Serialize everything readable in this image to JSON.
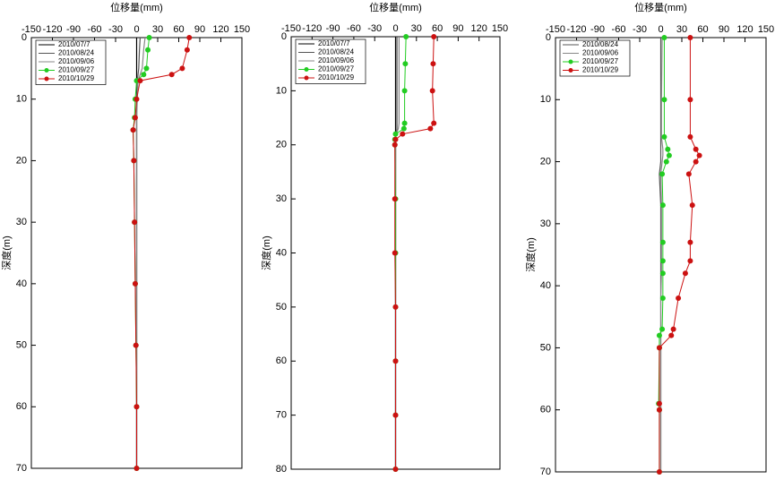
{
  "chart_data": [
    {
      "type": "line",
      "title": "位移量(mm)",
      "y_label": "深度(m)",
      "xlim": [
        -150,
        150
      ],
      "xticks": [
        -150,
        -120,
        -90,
        -60,
        -30,
        0,
        30,
        60,
        90,
        120,
        150
      ],
      "ylim": [
        0,
        70
      ],
      "yticks": [
        0,
        10,
        20,
        30,
        40,
        50,
        60,
        70
      ],
      "y_inverted": true,
      "depths": [
        0,
        2,
        5,
        6,
        7,
        10,
        13,
        15,
        20,
        30,
        40,
        50,
        60,
        70
      ],
      "series": [
        {
          "name": "2010/07/7",
          "color": "#000000",
          "marker": false,
          "values": [
            0,
            0,
            0,
            0,
            0,
            0,
            0,
            0,
            0,
            0,
            0,
            0,
            0,
            0
          ]
        },
        {
          "name": "2010/08/24",
          "color": "#555555",
          "marker": false,
          "values": [
            5,
            4,
            3,
            2,
            1,
            0,
            0,
            0,
            0,
            0,
            0,
            0,
            0,
            0
          ]
        },
        {
          "name": "2010/09/06",
          "color": "#888888",
          "marker": false,
          "values": [
            12,
            10,
            8,
            5,
            2,
            1,
            0,
            0,
            0,
            0,
            0,
            0,
            0,
            0
          ]
        },
        {
          "name": "2010/09/27",
          "color": "#22cc22",
          "marker": true,
          "values": [
            18,
            16,
            14,
            10,
            0,
            -2,
            -3,
            -5,
            -4,
            -3,
            -2,
            -1,
            0,
            0
          ]
        },
        {
          "name": "2010/10/29",
          "color": "#cc1111",
          "marker": true,
          "values": [
            75,
            72,
            65,
            50,
            5,
            0,
            -2,
            -5,
            -4,
            -3,
            -2,
            -1,
            0,
            0
          ]
        }
      ]
    },
    {
      "type": "line",
      "title": "位移量(mm)",
      "y_label": "深度(m)",
      "xlim": [
        -150,
        150
      ],
      "xticks": [
        -150,
        -120,
        -90,
        -60,
        -30,
        0,
        30,
        60,
        90,
        120,
        150
      ],
      "ylim": [
        0,
        80
      ],
      "yticks": [
        0,
        10,
        20,
        30,
        40,
        50,
        60,
        70,
        80
      ],
      "y_inverted": true,
      "depths": [
        0,
        5,
        10,
        16,
        17,
        18,
        19,
        20,
        30,
        40,
        50,
        60,
        70,
        80
      ],
      "series": [
        {
          "name": "2010/07/7",
          "color": "#000000",
          "marker": false,
          "values": [
            0,
            0,
            0,
            0,
            0,
            0,
            0,
            0,
            0,
            0,
            0,
            0,
            0,
            0
          ]
        },
        {
          "name": "2010/08/24",
          "color": "#555555",
          "marker": false,
          "values": [
            2,
            2,
            2,
            2,
            2,
            1,
            0,
            0,
            0,
            0,
            0,
            0,
            0,
            0
          ]
        },
        {
          "name": "2010/09/06",
          "color": "#888888",
          "marker": false,
          "values": [
            5,
            5,
            5,
            5,
            4,
            1,
            0,
            0,
            0,
            0,
            0,
            0,
            0,
            0
          ]
        },
        {
          "name": "2010/09/27",
          "color": "#22cc22",
          "marker": true,
          "values": [
            15,
            14,
            13,
            13,
            12,
            0,
            -1,
            -1,
            0,
            0,
            0,
            0,
            0,
            0
          ]
        },
        {
          "name": "2010/10/29",
          "color": "#cc1111",
          "marker": true,
          "values": [
            55,
            54,
            53,
            55,
            50,
            10,
            0,
            -1,
            -1,
            -1,
            0,
            0,
            0,
            0
          ]
        }
      ]
    },
    {
      "type": "line",
      "title": "位移量(mm)",
      "y_label": "深度(m)",
      "xlim": [
        -150,
        150
      ],
      "xticks": [
        -150,
        -120,
        -90,
        -60,
        -30,
        0,
        30,
        60,
        90,
        120,
        150
      ],
      "ylim": [
        0,
        70
      ],
      "yticks": [
        0,
        10,
        20,
        30,
        40,
        50,
        60,
        70
      ],
      "y_inverted": true,
      "depths": [
        0,
        10,
        16,
        18,
        19,
        20,
        22,
        27,
        33,
        36,
        38,
        42,
        47,
        48,
        50,
        59,
        60,
        70
      ],
      "series": [
        {
          "name": "2010/08/24",
          "color": "#555555",
          "marker": false,
          "values": [
            0,
            0,
            0,
            0,
            0,
            0,
            -2,
            0,
            0,
            0,
            0,
            0,
            0,
            0,
            0,
            0,
            0,
            0
          ]
        },
        {
          "name": "2010/09/06",
          "color": "#888888",
          "marker": false,
          "values": [
            2,
            1,
            1,
            3,
            3,
            2,
            0,
            1,
            1,
            1,
            1,
            0,
            0,
            0,
            0,
            0,
            0,
            0
          ]
        },
        {
          "name": "2010/09/27",
          "color": "#22cc22",
          "marker": true,
          "values": [
            5,
            5,
            5,
            10,
            12,
            8,
            2,
            3,
            3,
            3,
            3,
            3,
            2,
            -2,
            -2,
            -3,
            -2,
            -2
          ]
        },
        {
          "name": "2010/10/29",
          "color": "#cc1111",
          "marker": true,
          "values": [
            42,
            42,
            42,
            50,
            55,
            50,
            40,
            45,
            42,
            42,
            35,
            25,
            18,
            15,
            -2,
            -2,
            -2,
            -2
          ]
        }
      ]
    }
  ]
}
